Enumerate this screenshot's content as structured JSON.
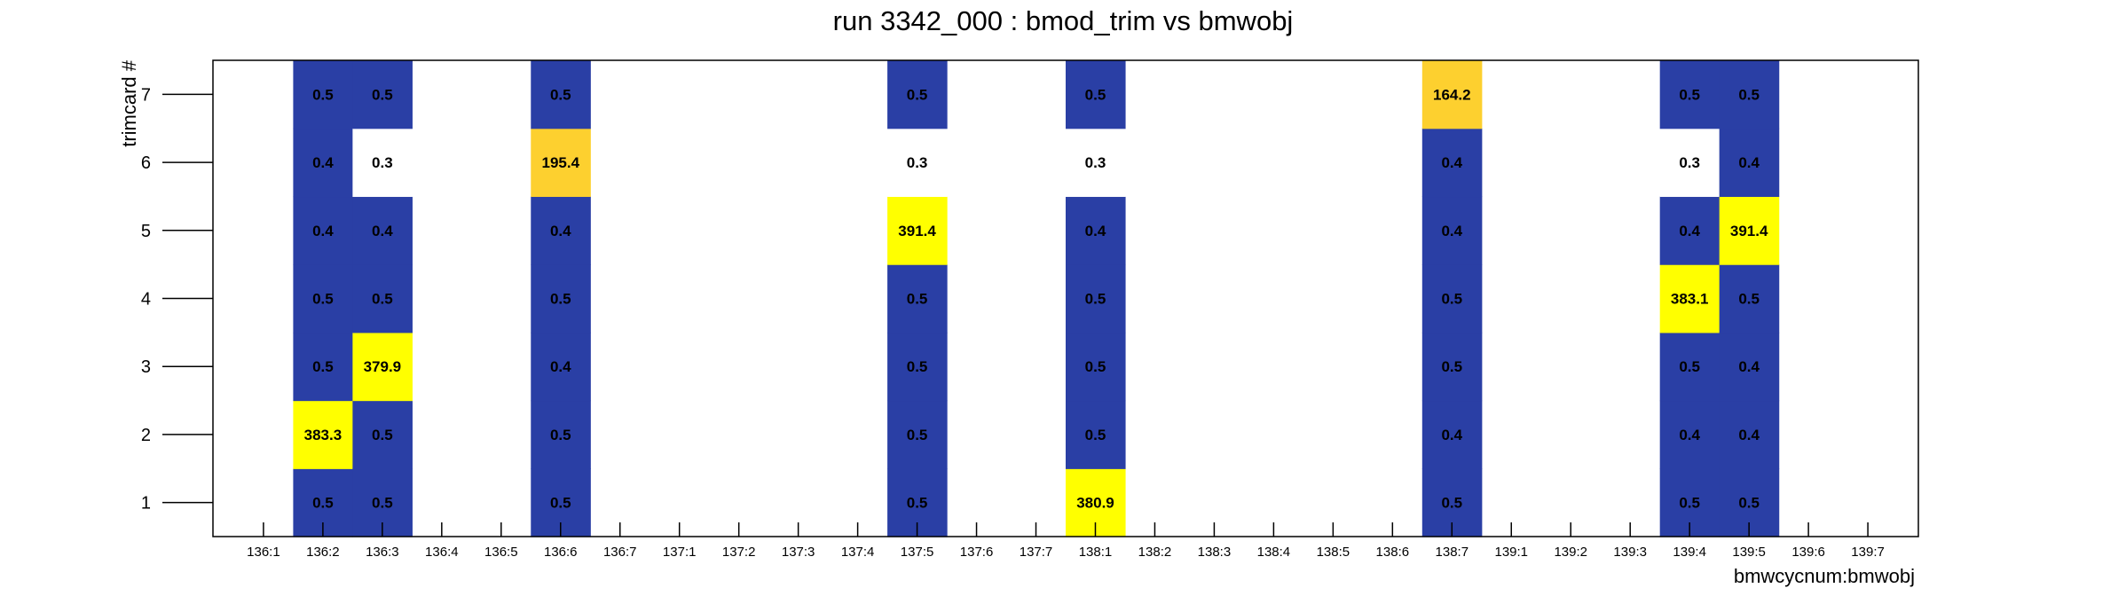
{
  "chart_data": {
    "type": "heatmap",
    "title": "run 3342_000 : bmod_trim vs bmwobj",
    "xlabel": "bmwcycnum:bmwobj",
    "ylabel": "trimcard #",
    "x_categories": [
      "136:1",
      "136:2",
      "136:3",
      "136:4",
      "136:5",
      "136:6",
      "136:7",
      "137:1",
      "137:2",
      "137:3",
      "137:4",
      "137:5",
      "137:6",
      "137:7",
      "138:1",
      "138:2",
      "138:3",
      "138:4",
      "138:5",
      "138:6",
      "138:7",
      "139:1",
      "139:2",
      "139:3",
      "139:4",
      "139:5",
      "139:6",
      "139:7"
    ],
    "y_categories": [
      "1",
      "2",
      "3",
      "4",
      "5",
      "6",
      "7"
    ],
    "color_scale": {
      "low": "#2a3fa5",
      "high": "#ffff00",
      "mid": "#fdd02f",
      "zero": "#ffffff"
    },
    "cells": [
      {
        "x": "136:2",
        "y": "1",
        "value": "0.5"
      },
      {
        "x": "136:2",
        "y": "2",
        "value": "383.3"
      },
      {
        "x": "136:2",
        "y": "3",
        "value": "0.5"
      },
      {
        "x": "136:2",
        "y": "4",
        "value": "0.5"
      },
      {
        "x": "136:2",
        "y": "5",
        "value": "0.4"
      },
      {
        "x": "136:2",
        "y": "6",
        "value": "0.4"
      },
      {
        "x": "136:2",
        "y": "7",
        "value": "0.5"
      },
      {
        "x": "136:3",
        "y": "1",
        "value": "0.5"
      },
      {
        "x": "136:3",
        "y": "2",
        "value": "0.5"
      },
      {
        "x": "136:3",
        "y": "3",
        "value": "379.9"
      },
      {
        "x": "136:3",
        "y": "4",
        "value": "0.5"
      },
      {
        "x": "136:3",
        "y": "5",
        "value": "0.4"
      },
      {
        "x": "136:3",
        "y": "6",
        "value": "0.3"
      },
      {
        "x": "136:3",
        "y": "7",
        "value": "0.5"
      },
      {
        "x": "136:6",
        "y": "1",
        "value": "0.5"
      },
      {
        "x": "136:6",
        "y": "2",
        "value": "0.5"
      },
      {
        "x": "136:6",
        "y": "3",
        "value": "0.4"
      },
      {
        "x": "136:6",
        "y": "4",
        "value": "0.5"
      },
      {
        "x": "136:6",
        "y": "5",
        "value": "0.4"
      },
      {
        "x": "136:6",
        "y": "6",
        "value": "195.4"
      },
      {
        "x": "136:6",
        "y": "7",
        "value": "0.5"
      },
      {
        "x": "137:5",
        "y": "1",
        "value": "0.5"
      },
      {
        "x": "137:5",
        "y": "2",
        "value": "0.5"
      },
      {
        "x": "137:5",
        "y": "3",
        "value": "0.5"
      },
      {
        "x": "137:5",
        "y": "4",
        "value": "0.5"
      },
      {
        "x": "137:5",
        "y": "5",
        "value": "391.4"
      },
      {
        "x": "137:5",
        "y": "6",
        "value": "0.3"
      },
      {
        "x": "137:5",
        "y": "7",
        "value": "0.5"
      },
      {
        "x": "138:1",
        "y": "1",
        "value": "380.9"
      },
      {
        "x": "138:1",
        "y": "2",
        "value": "0.5"
      },
      {
        "x": "138:1",
        "y": "3",
        "value": "0.5"
      },
      {
        "x": "138:1",
        "y": "4",
        "value": "0.5"
      },
      {
        "x": "138:1",
        "y": "5",
        "value": "0.4"
      },
      {
        "x": "138:1",
        "y": "6",
        "value": "0.3"
      },
      {
        "x": "138:1",
        "y": "7",
        "value": "0.5"
      },
      {
        "x": "138:7",
        "y": "1",
        "value": "0.5"
      },
      {
        "x": "138:7",
        "y": "2",
        "value": "0.4"
      },
      {
        "x": "138:7",
        "y": "3",
        "value": "0.5"
      },
      {
        "x": "138:7",
        "y": "4",
        "value": "0.5"
      },
      {
        "x": "138:7",
        "y": "5",
        "value": "0.4"
      },
      {
        "x": "138:7",
        "y": "6",
        "value": "0.4"
      },
      {
        "x": "138:7",
        "y": "7",
        "value": "164.2"
      },
      {
        "x": "139:4",
        "y": "1",
        "value": "0.5"
      },
      {
        "x": "139:4",
        "y": "2",
        "value": "0.4"
      },
      {
        "x": "139:4",
        "y": "3",
        "value": "0.5"
      },
      {
        "x": "139:4",
        "y": "4",
        "value": "383.1"
      },
      {
        "x": "139:4",
        "y": "5",
        "value": "0.4"
      },
      {
        "x": "139:4",
        "y": "6",
        "value": "0.3"
      },
      {
        "x": "139:4",
        "y": "7",
        "value": "0.5"
      },
      {
        "x": "139:5",
        "y": "1",
        "value": "0.5"
      },
      {
        "x": "139:5",
        "y": "2",
        "value": "0.4"
      },
      {
        "x": "139:5",
        "y": "3",
        "value": "0.4"
      },
      {
        "x": "139:5",
        "y": "4",
        "value": "0.5"
      },
      {
        "x": "139:5",
        "y": "5",
        "value": "391.4"
      },
      {
        "x": "139:5",
        "y": "6",
        "value": "0.4"
      },
      {
        "x": "139:5",
        "y": "7",
        "value": "0.5"
      }
    ]
  }
}
